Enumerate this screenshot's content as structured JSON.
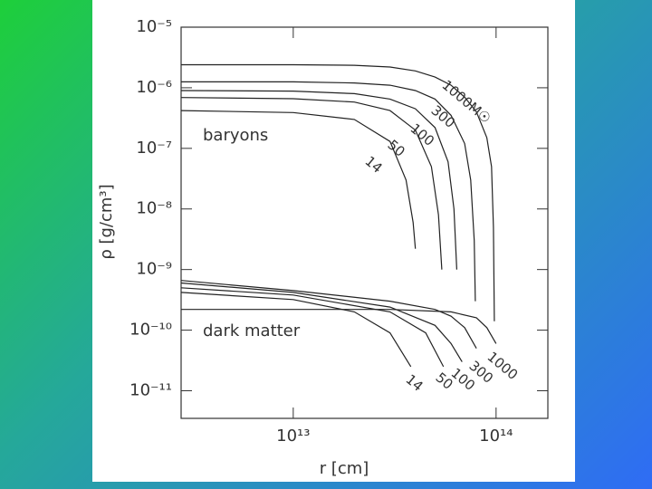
{
  "chart_data": {
    "type": "line",
    "xlabel": "r [cm]",
    "ylabel": "ρ [g/cm³]",
    "annotations": [
      "baryons",
      "dark matter"
    ],
    "xscale": "log",
    "yscale": "log",
    "xlim": [
      2800000000000.0,
      180000000000000.0
    ],
    "ylim": [
      3.5e-12,
      1e-05
    ],
    "xticks": [
      {
        "value": 10000000000000.0,
        "label": "10¹³"
      },
      {
        "value": 100000000000000.0,
        "label": "10¹⁴"
      }
    ],
    "yticks": [
      {
        "value": 1e-05,
        "label": "10⁻⁵"
      },
      {
        "value": 1e-06,
        "label": "10⁻⁶"
      },
      {
        "value": 1e-07,
        "label": "10⁻⁷"
      },
      {
        "value": 1e-08,
        "label": "10⁻⁸"
      },
      {
        "value": 1e-09,
        "label": "10⁻⁹"
      },
      {
        "value": 1e-10,
        "label": "10⁻¹⁰"
      },
      {
        "value": 1e-11,
        "label": "10⁻¹¹"
      }
    ],
    "series": [
      {
        "name": "1000M☉",
        "color": "#222",
        "x": [
          2800000000000.0,
          10000000000000.0,
          20000000000000.0,
          30000000000000.0,
          40000000000000.0,
          50000000000000.0,
          60000000000000.0,
          70000000000000.0,
          80000000000000.0,
          90000000000000.0,
          95000000000000.0,
          97000000000000.0,
          98000000000000.0
        ],
        "values": [
          2.4e-06,
          2.4e-06,
          2.35e-06,
          2.2e-06,
          1.9e-06,
          1.5e-06,
          1.1e-06,
          7e-07,
          4e-07,
          1.5e-07,
          5e-08,
          5e-09,
          1.4e-10
        ]
      },
      {
        "name": "300",
        "color": "#222",
        "x": [
          2800000000000.0,
          10000000000000.0,
          20000000000000.0,
          30000000000000.0,
          40000000000000.0,
          50000000000000.0,
          60000000000000.0,
          70000000000000.0,
          75000000000000.0,
          78000000000000.0,
          79000000000000.0
        ],
        "values": [
          1.25e-06,
          1.25e-06,
          1.2e-06,
          1.1e-06,
          9e-07,
          6.5e-07,
          3.5e-07,
          1.2e-07,
          3e-08,
          3e-09,
          3e-10
        ]
      },
      {
        "name": "100",
        "color": "#222",
        "x": [
          2800000000000.0,
          10000000000000.0,
          20000000000000.0,
          30000000000000.0,
          40000000000000.0,
          50000000000000.0,
          58000000000000.0,
          62000000000000.0,
          64000000000000.0
        ],
        "values": [
          9e-07,
          8.8e-07,
          8e-07,
          6.5e-07,
          4.5e-07,
          2.2e-07,
          6e-08,
          1e-08,
          1e-09
        ]
      },
      {
        "name": "50",
        "color": "#222",
        "x": [
          2800000000000.0,
          10000000000000.0,
          20000000000000.0,
          30000000000000.0,
          40000000000000.0,
          48000000000000.0,
          52000000000000.0,
          54000000000000.0
        ],
        "values": [
          6.9e-07,
          6.6e-07,
          5.8e-07,
          4.2e-07,
          2e-07,
          5e-08,
          8e-09,
          1e-09
        ]
      },
      {
        "name": "14",
        "color": "#222",
        "x": [
          2800000000000.0,
          10000000000000.0,
          20000000000000.0,
          30000000000000.0,
          36000000000000.0,
          39000000000000.0,
          40000000000000.0
        ],
        "values": [
          4.2e-07,
          3.9e-07,
          3e-07,
          1.3e-07,
          3e-08,
          6e-09,
          2.2e-09
        ]
      },
      {
        "name": "1000",
        "color": "#222",
        "x": [
          2800000000000.0,
          10000000000000.0,
          30000000000000.0,
          60000000000000.0,
          80000000000000.0,
          90000000000000.0,
          100000000000000.0
        ],
        "values": [
          2.2e-10,
          2.2e-10,
          2.2e-10,
          2e-10,
          1.6e-10,
          1.1e-10,
          6e-11
        ]
      },
      {
        "name": "300",
        "color": "#222",
        "x": [
          2800000000000.0,
          10000000000000.0,
          30000000000000.0,
          50000000000000.0,
          60000000000000.0,
          70000000000000.0,
          80000000000000.0
        ],
        "values": [
          6.6e-10,
          4.5e-10,
          3e-10,
          2.2e-10,
          1.7e-10,
          1.1e-10,
          5e-11
        ]
      },
      {
        "name": "100",
        "color": "#222",
        "x": [
          2800000000000.0,
          10000000000000.0,
          30000000000000.0,
          50000000000000.0,
          60000000000000.0,
          68000000000000.0
        ],
        "values": [
          6e-10,
          4.2e-10,
          2.4e-10,
          1.2e-10,
          6e-11,
          3e-11
        ]
      },
      {
        "name": "50",
        "color": "#222",
        "x": [
          2800000000000.0,
          10000000000000.0,
          30000000000000.0,
          45000000000000.0,
          55000000000000.0
        ],
        "values": [
          5e-10,
          3.8e-10,
          2e-10,
          9e-11,
          2.5e-11
        ]
      },
      {
        "name": "14",
        "color": "#222",
        "x": [
          2800000000000.0,
          10000000000000.0,
          20000000000000.0,
          30000000000000.0,
          38000000000000.0
        ],
        "values": [
          4.2e-10,
          3.2e-10,
          2e-10,
          9e-11,
          2.5e-11
        ]
      }
    ]
  }
}
